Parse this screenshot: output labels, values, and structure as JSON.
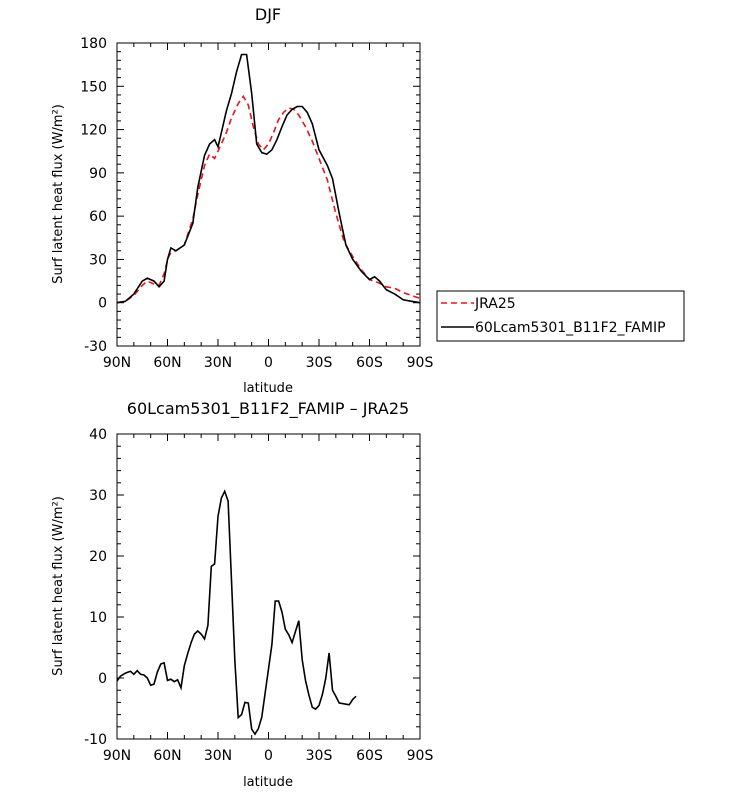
{
  "chart_data": [
    {
      "type": "line",
      "title": "DJF",
      "xlabel": "latitude",
      "ylabel": "Surf latent heat flux (W/m²)",
      "xlim": [
        90,
        -90
      ],
      "ylim": [
        -30,
        180
      ],
      "x_ticks": [
        90,
        60,
        30,
        0,
        -30,
        -60,
        -90
      ],
      "x_tick_labels": [
        "90N",
        "60N",
        "30N",
        "0",
        "30S",
        "60S",
        "90S"
      ],
      "y_ticks": [
        -30,
        0,
        30,
        60,
        90,
        120,
        150,
        180
      ],
      "y_tick_labels": [
        "-30",
        "0",
        "30",
        "60",
        "90",
        "120",
        "150",
        "180"
      ],
      "legend_position": "right",
      "series": [
        {
          "name": "JRA25",
          "color": "#e8141c",
          "style": "dashed",
          "points": [
            [
              90,
              0
            ],
            [
              85,
              1
            ],
            [
              80,
              5
            ],
            [
              75,
              12
            ],
            [
              72,
              15
            ],
            [
              68,
              13
            ],
            [
              65,
              12
            ],
            [
              62,
              20
            ],
            [
              60,
              30
            ],
            [
              58,
              35
            ],
            [
              55,
              36
            ],
            [
              50,
              40
            ],
            [
              45,
              58
            ],
            [
              42,
              75
            ],
            [
              38,
              95
            ],
            [
              35,
              103
            ],
            [
              32,
              100
            ],
            [
              28,
              110
            ],
            [
              25,
              118
            ],
            [
              22,
              128
            ],
            [
              18,
              138
            ],
            [
              15,
              143
            ],
            [
              12,
              137
            ],
            [
              9,
              122
            ],
            [
              6,
              110
            ],
            [
              3,
              106
            ],
            [
              0,
              110
            ],
            [
              -3,
              118
            ],
            [
              -6,
              127
            ],
            [
              -9,
              132
            ],
            [
              -12,
              135
            ],
            [
              -15,
              134
            ],
            [
              -18,
              130
            ],
            [
              -22,
              122
            ],
            [
              -26,
              112
            ],
            [
              -30,
              100
            ],
            [
              -35,
              85
            ],
            [
              -40,
              62
            ],
            [
              -45,
              42
            ],
            [
              -50,
              32
            ],
            [
              -55,
              23
            ],
            [
              -60,
              16
            ],
            [
              -65,
              14
            ],
            [
              -70,
              11
            ],
            [
              -75,
              10
            ],
            [
              -80,
              7
            ],
            [
              -85,
              5
            ],
            [
              -90,
              3
            ]
          ]
        },
        {
          "name": "60Lcam5301_B11F2_FAMIP",
          "color": "#000000",
          "style": "solid",
          "points": [
            [
              90,
              0
            ],
            [
              85,
              1
            ],
            [
              80,
              6
            ],
            [
              75,
              15
            ],
            [
              72,
              17
            ],
            [
              68,
              15
            ],
            [
              65,
              11
            ],
            [
              62,
              15
            ],
            [
              60,
              30
            ],
            [
              58,
              38
            ],
            [
              55,
              36
            ],
            [
              50,
              40
            ],
            [
              45,
              55
            ],
            [
              42,
              80
            ],
            [
              38,
              102
            ],
            [
              35,
              110
            ],
            [
              32,
              113
            ],
            [
              30,
              108
            ],
            [
              28,
              118
            ],
            [
              25,
              133
            ],
            [
              22,
              145
            ],
            [
              19,
              160
            ],
            [
              16,
              172
            ],
            [
              13,
              172
            ],
            [
              10,
              145
            ],
            [
              7,
              110
            ],
            [
              4,
              104
            ],
            [
              1,
              103
            ],
            [
              -2,
              106
            ],
            [
              -5,
              113
            ],
            [
              -8,
              122
            ],
            [
              -11,
              130
            ],
            [
              -14,
              134
            ],
            [
              -17,
              136
            ],
            [
              -20,
              136
            ],
            [
              -23,
              132
            ],
            [
              -26,
              124
            ],
            [
              -30,
              106
            ],
            [
              -35,
              95
            ],
            [
              -38,
              86
            ],
            [
              -42,
              62
            ],
            [
              -46,
              40
            ],
            [
              -50,
              30
            ],
            [
              -55,
              22
            ],
            [
              -60,
              16
            ],
            [
              -63,
              18
            ],
            [
              -66,
              15
            ],
            [
              -70,
              9
            ],
            [
              -75,
              6
            ],
            [
              -80,
              2
            ],
            [
              -85,
              1
            ],
            [
              -90,
              0
            ]
          ]
        }
      ]
    },
    {
      "type": "line",
      "title": "60Lcam5301_B11F2_FAMIP – JRA25",
      "xlabel": "latitude",
      "ylabel": "Surf latent heat flux (W/m²)",
      "xlim": [
        90,
        -90
      ],
      "ylim": [
        -10,
        40
      ],
      "x_ticks": [
        90,
        60,
        30,
        0,
        -30,
        -60,
        -90
      ],
      "x_tick_labels": [
        "90N",
        "60N",
        "30N",
        "0",
        "30S",
        "60S",
        "90S"
      ],
      "y_ticks": [
        -10,
        0,
        10,
        20,
        30,
        40
      ],
      "y_tick_labels": [
        "-10",
        "0",
        "10",
        "20",
        "30",
        "40"
      ],
      "series": [
        {
          "name": "",
          "color": "#000000",
          "style": "solid",
          "points": [
            [
              90,
              -0.5
            ],
            [
              88,
              0.3
            ],
            [
              85,
              0.8
            ],
            [
              82,
              1.1
            ],
            [
              80,
              0.6
            ],
            [
              78,
              1.2
            ],
            [
              76,
              0.6
            ],
            [
              74,
              0.5
            ],
            [
              72,
              0
            ],
            [
              70,
              -1.2
            ],
            [
              68,
              -1
            ],
            [
              66,
              1
            ],
            [
              64,
              2.3
            ],
            [
              62,
              2.5
            ],
            [
              60,
              -0.4
            ],
            [
              58,
              -0.2
            ],
            [
              56,
              -0.6
            ],
            [
              54,
              -0.3
            ],
            [
              52,
              -1.6
            ],
            [
              50,
              2
            ],
            [
              48,
              4
            ],
            [
              46,
              5.8
            ],
            [
              44,
              7.2
            ],
            [
              42,
              7.7
            ],
            [
              40,
              7.2
            ],
            [
              38,
              6.4
            ],
            [
              36,
              8.6
            ],
            [
              34,
              18.3
            ],
            [
              32,
              18.7
            ],
            [
              30,
              26.5
            ],
            [
              28,
              29.5
            ],
            [
              26,
              30.6
            ],
            [
              24,
              29
            ],
            [
              22,
              16
            ],
            [
              20,
              3
            ],
            [
              18,
              -6.5
            ],
            [
              16,
              -6
            ],
            [
              14,
              -4
            ],
            [
              12,
              -4.1
            ],
            [
              10,
              -8.4
            ],
            [
              8,
              -9.2
            ],
            [
              6,
              -8.3
            ],
            [
              4,
              -6.4
            ],
            [
              2,
              -2.5
            ],
            [
              0,
              1.5
            ],
            [
              -2,
              5.5
            ],
            [
              -4,
              12.6
            ],
            [
              -6,
              12.6
            ],
            [
              -8,
              10.8
            ],
            [
              -10,
              8
            ],
            [
              -12,
              7.1
            ],
            [
              -14,
              5.8
            ],
            [
              -16,
              7.6
            ],
            [
              -18,
              9.4
            ],
            [
              -20,
              3
            ],
            [
              -22,
              -0.4
            ],
            [
              -24,
              -2.8
            ],
            [
              -26,
              -4.8
            ],
            [
              -28,
              -5.1
            ],
            [
              -30,
              -4.5
            ],
            [
              -32,
              -2.7
            ],
            [
              -34,
              -0.1
            ],
            [
              -36,
              4.1
            ],
            [
              -38,
              -2
            ],
            [
              -40,
              -3
            ],
            [
              -42,
              -4.1
            ],
            [
              -44,
              -4.2
            ],
            [
              -46,
              -4.3
            ],
            [
              -48,
              -4.4
            ],
            [
              -50,
              -3.5
            ],
            [
              -52,
              -3
            ]
          ]
        }
      ]
    }
  ]
}
